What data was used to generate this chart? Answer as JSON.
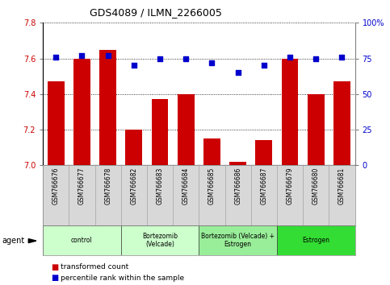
{
  "title": "GDS4089 / ILMN_2266005",
  "samples": [
    "GSM766676",
    "GSM766677",
    "GSM766678",
    "GSM766682",
    "GSM766683",
    "GSM766684",
    "GSM766685",
    "GSM766686",
    "GSM766687",
    "GSM766679",
    "GSM766680",
    "GSM766681"
  ],
  "bar_values": [
    7.47,
    7.6,
    7.65,
    7.2,
    7.37,
    7.4,
    7.15,
    7.02,
    7.14,
    7.6,
    7.4,
    7.47
  ],
  "scatter_values": [
    76,
    77,
    77,
    70,
    75,
    75,
    72,
    65,
    70,
    76,
    75,
    76
  ],
  "bar_color": "#cc0000",
  "scatter_color": "#0000cc",
  "ylim_left": [
    7.0,
    7.8
  ],
  "ylim_right": [
    0,
    100
  ],
  "yticks_left": [
    7.0,
    7.2,
    7.4,
    7.6,
    7.8
  ],
  "yticks_right": [
    0,
    25,
    50,
    75,
    100
  ],
  "ylabel_right_labels": [
    "0",
    "25",
    "50",
    "75",
    "100%"
  ],
  "groups": [
    {
      "label": "control",
      "start": 0,
      "end": 3,
      "color": "#ccffcc"
    },
    {
      "label": "Bortezomib\n(Velcade)",
      "start": 3,
      "end": 6,
      "color": "#ccffcc"
    },
    {
      "label": "Bortezomib (Velcade) +\nEstrogen",
      "start": 6,
      "end": 9,
      "color": "#99ee99"
    },
    {
      "label": "Estrogen",
      "start": 9,
      "end": 12,
      "color": "#33dd33"
    }
  ],
  "legend_bar_label": "transformed count",
  "legend_scatter_label": "percentile rank within the sample",
  "agent_label": "agent"
}
